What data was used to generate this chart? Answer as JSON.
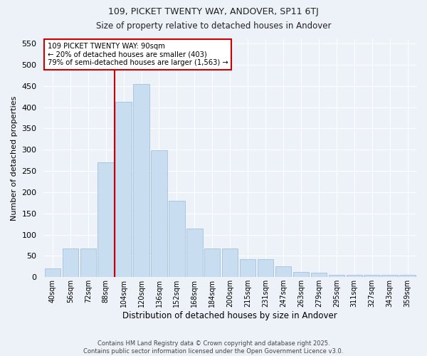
{
  "title": "109, PICKET TWENTY WAY, ANDOVER, SP11 6TJ",
  "subtitle": "Size of property relative to detached houses in Andover",
  "xlabel": "Distribution of detached houses by size in Andover",
  "ylabel": "Number of detached properties",
  "bar_color": "#c9ddf0",
  "bar_edge_color": "#9ab8d8",
  "background_color": "#edf2f9",
  "grid_color": "#ffffff",
  "categories": [
    "40sqm",
    "56sqm",
    "72sqm",
    "88sqm",
    "104sqm",
    "120sqm",
    "136sqm",
    "152sqm",
    "168sqm",
    "184sqm",
    "200sqm",
    "215sqm",
    "231sqm",
    "247sqm",
    "263sqm",
    "279sqm",
    "295sqm",
    "311sqm",
    "327sqm",
    "343sqm",
    "359sqm"
  ],
  "values": [
    20,
    68,
    68,
    270,
    413,
    455,
    298,
    180,
    115,
    68,
    68,
    43,
    43,
    25,
    13,
    10,
    5,
    5,
    5,
    5,
    5
  ],
  "red_line_x": 3.5,
  "annotation_title": "109 PICKET TWENTY WAY: 90sqm",
  "annotation_line2": "← 20% of detached houses are smaller (403)",
  "annotation_line3": "79% of semi-detached houses are larger (1,563) →",
  "annotation_box_color": "#ffffff",
  "annotation_box_edge": "#cc0000",
  "red_line_color": "#cc0000",
  "ylim": [
    0,
    560
  ],
  "yticks": [
    0,
    50,
    100,
    150,
    200,
    250,
    300,
    350,
    400,
    450,
    500,
    550
  ],
  "footer_line1": "Contains HM Land Registry data © Crown copyright and database right 2025.",
  "footer_line2": "Contains public sector information licensed under the Open Government Licence v3.0."
}
